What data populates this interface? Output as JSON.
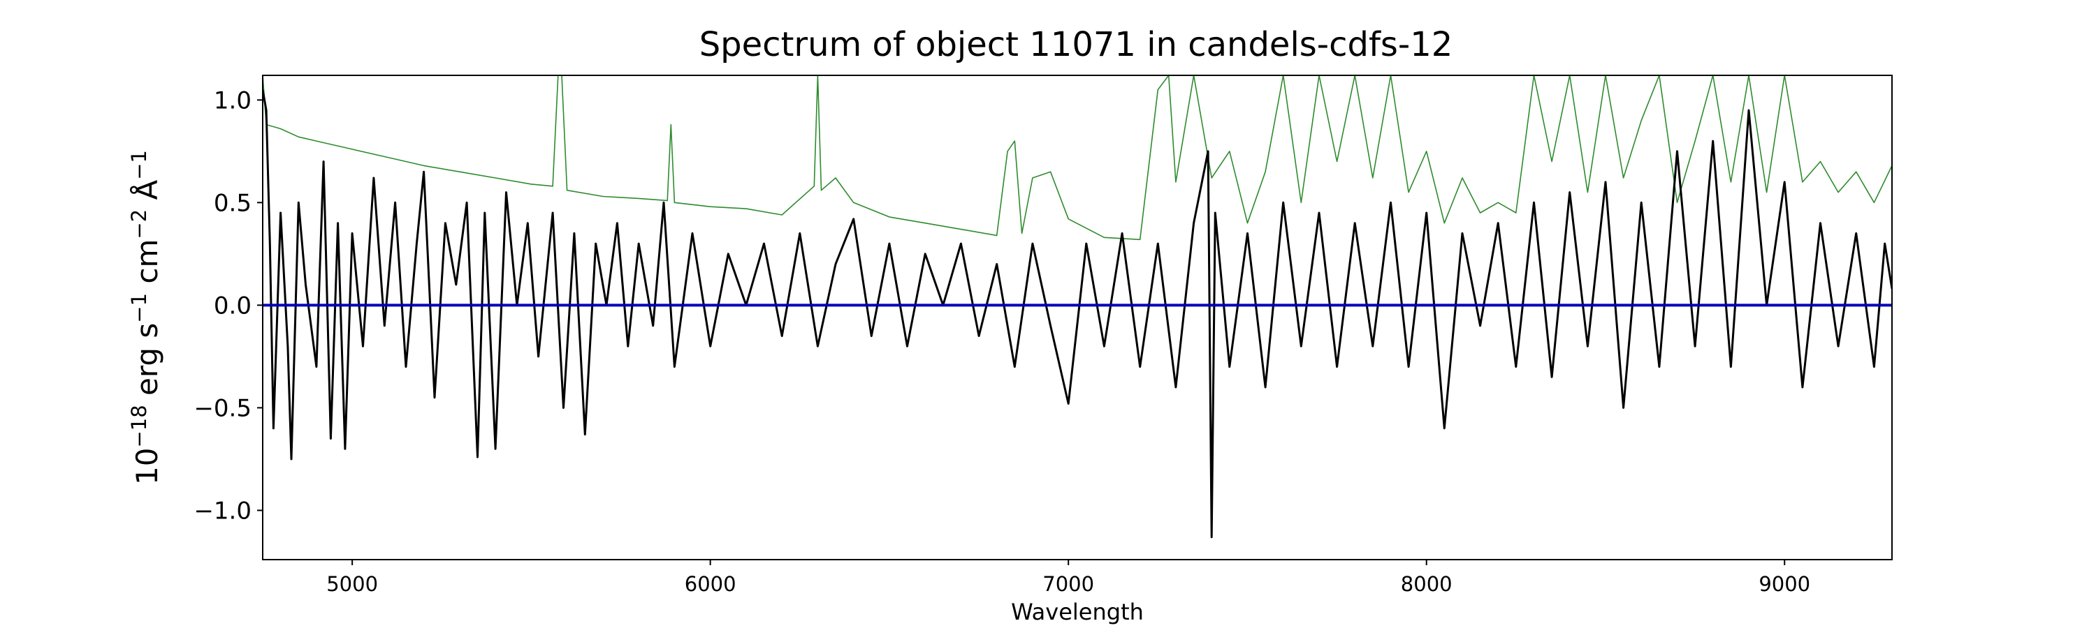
{
  "chart_data": {
    "type": "line",
    "title": "Spectrum of object 11071 in candels-cdfs-12",
    "xlabel": "Wavelength",
    "ylabel_parts": {
      "p1": "10",
      "e1": "−18",
      "p2": " erg s",
      "e2": "−1",
      "p3": " cm",
      "e3": "−2",
      "p4": " Å",
      "e4": "−1"
    },
    "xlim": [
      4750,
      9300
    ],
    "ylim": [
      -1.24,
      1.12
    ],
    "xticks": [
      5000,
      6000,
      7000,
      8000,
      9000
    ],
    "xtick_labels": [
      "5000",
      "6000",
      "7000",
      "8000",
      "9000"
    ],
    "yticks": [
      -1.0,
      -0.5,
      0.0,
      0.5,
      1.0
    ],
    "ytick_labels": [
      "−1.0",
      "−0.5",
      "0.0",
      "0.5",
      "1.0"
    ],
    "grid": false,
    "series": [
      {
        "role": "error",
        "color": "#2e8b2e",
        "points": [
          [
            4750,
            1.12
          ],
          [
            4760,
            0.88
          ],
          [
            4800,
            0.86
          ],
          [
            4850,
            0.82
          ],
          [
            4900,
            0.8
          ],
          [
            5000,
            0.76
          ],
          [
            5100,
            0.72
          ],
          [
            5200,
            0.68
          ],
          [
            5300,
            0.65
          ],
          [
            5400,
            0.62
          ],
          [
            5500,
            0.59
          ],
          [
            5560,
            0.58
          ],
          [
            5575,
            1.12
          ],
          [
            5585,
            1.12
          ],
          [
            5600,
            0.56
          ],
          [
            5700,
            0.53
          ],
          [
            5800,
            0.52
          ],
          [
            5880,
            0.51
          ],
          [
            5890,
            0.88
          ],
          [
            5900,
            0.5
          ],
          [
            6000,
            0.48
          ],
          [
            6100,
            0.47
          ],
          [
            6200,
            0.44
          ],
          [
            6290,
            0.58
          ],
          [
            6300,
            1.12
          ],
          [
            6310,
            0.56
          ],
          [
            6350,
            0.62
          ],
          [
            6400,
            0.5
          ],
          [
            6500,
            0.43
          ],
          [
            6600,
            0.4
          ],
          [
            6700,
            0.37
          ],
          [
            6800,
            0.34
          ],
          [
            6830,
            0.75
          ],
          [
            6850,
            0.8
          ],
          [
            6870,
            0.35
          ],
          [
            6900,
            0.62
          ],
          [
            6950,
            0.65
          ],
          [
            7000,
            0.42
          ],
          [
            7100,
            0.33
          ],
          [
            7200,
            0.32
          ],
          [
            7250,
            1.05
          ],
          [
            7280,
            1.12
          ],
          [
            7300,
            0.6
          ],
          [
            7350,
            1.12
          ],
          [
            7400,
            0.62
          ],
          [
            7450,
            0.75
          ],
          [
            7500,
            0.4
          ],
          [
            7550,
            0.65
          ],
          [
            7600,
            1.12
          ],
          [
            7650,
            0.5
          ],
          [
            7700,
            1.12
          ],
          [
            7750,
            0.7
          ],
          [
            7800,
            1.12
          ],
          [
            7850,
            0.62
          ],
          [
            7900,
            1.12
          ],
          [
            7950,
            0.55
          ],
          [
            8000,
            0.75
          ],
          [
            8050,
            0.4
          ],
          [
            8100,
            0.62
          ],
          [
            8150,
            0.45
          ],
          [
            8200,
            0.5
          ],
          [
            8250,
            0.45
          ],
          [
            8300,
            1.12
          ],
          [
            8350,
            0.7
          ],
          [
            8400,
            1.12
          ],
          [
            8450,
            0.55
          ],
          [
            8500,
            1.12
          ],
          [
            8550,
            0.62
          ],
          [
            8600,
            0.9
          ],
          [
            8650,
            1.12
          ],
          [
            8700,
            0.5
          ],
          [
            8750,
            0.8
          ],
          [
            8800,
            1.12
          ],
          [
            8850,
            0.6
          ],
          [
            8900,
            1.12
          ],
          [
            8950,
            0.55
          ],
          [
            9000,
            1.12
          ],
          [
            9050,
            0.6
          ],
          [
            9100,
            0.7
          ],
          [
            9150,
            0.55
          ],
          [
            9200,
            0.65
          ],
          [
            9250,
            0.5
          ],
          [
            9300,
            0.68
          ]
        ]
      },
      {
        "role": "flux",
        "color": "#000000",
        "points": [
          [
            4750,
            1.05
          ],
          [
            4760,
            0.95
          ],
          [
            4770,
            0.3
          ],
          [
            4780,
            -0.6
          ],
          [
            4800,
            0.45
          ],
          [
            4820,
            -0.2
          ],
          [
            4830,
            -0.75
          ],
          [
            4850,
            0.5
          ],
          [
            4870,
            0.1
          ],
          [
            4900,
            -0.3
          ],
          [
            4920,
            0.7
          ],
          [
            4940,
            -0.65
          ],
          [
            4960,
            0.4
          ],
          [
            4980,
            -0.7
          ],
          [
            5000,
            0.35
          ],
          [
            5030,
            -0.2
          ],
          [
            5060,
            0.62
          ],
          [
            5090,
            -0.1
          ],
          [
            5120,
            0.5
          ],
          [
            5150,
            -0.3
          ],
          [
            5180,
            0.3
          ],
          [
            5200,
            0.65
          ],
          [
            5230,
            -0.45
          ],
          [
            5260,
            0.4
          ],
          [
            5290,
            0.1
          ],
          [
            5320,
            0.5
          ],
          [
            5350,
            -0.74
          ],
          [
            5370,
            0.45
          ],
          [
            5400,
            -0.7
          ],
          [
            5430,
            0.55
          ],
          [
            5460,
            0.0
          ],
          [
            5490,
            0.4
          ],
          [
            5520,
            -0.25
          ],
          [
            5560,
            0.45
          ],
          [
            5590,
            -0.5
          ],
          [
            5620,
            0.35
          ],
          [
            5650,
            -0.63
          ],
          [
            5680,
            0.3
          ],
          [
            5710,
            0.0
          ],
          [
            5740,
            0.4
          ],
          [
            5770,
            -0.2
          ],
          [
            5800,
            0.3
          ],
          [
            5840,
            -0.1
          ],
          [
            5870,
            0.5
          ],
          [
            5900,
            -0.3
          ],
          [
            5950,
            0.35
          ],
          [
            6000,
            -0.2
          ],
          [
            6050,
            0.25
          ],
          [
            6100,
            0.0
          ],
          [
            6150,
            0.3
          ],
          [
            6200,
            -0.15
          ],
          [
            6250,
            0.35
          ],
          [
            6300,
            -0.2
          ],
          [
            6350,
            0.2
          ],
          [
            6400,
            0.42
          ],
          [
            6450,
            -0.15
          ],
          [
            6500,
            0.3
          ],
          [
            6550,
            -0.2
          ],
          [
            6600,
            0.25
          ],
          [
            6650,
            0.0
          ],
          [
            6700,
            0.3
          ],
          [
            6750,
            -0.15
          ],
          [
            6800,
            0.2
          ],
          [
            6850,
            -0.3
          ],
          [
            6900,
            0.3
          ],
          [
            6950,
            -0.1
          ],
          [
            7000,
            -0.48
          ],
          [
            7050,
            0.3
          ],
          [
            7100,
            -0.2
          ],
          [
            7150,
            0.35
          ],
          [
            7200,
            -0.3
          ],
          [
            7250,
            0.3
          ],
          [
            7300,
            -0.4
          ],
          [
            7350,
            0.4
          ],
          [
            7390,
            0.75
          ],
          [
            7400,
            -1.13
          ],
          [
            7410,
            0.45
          ],
          [
            7450,
            -0.3
          ],
          [
            7500,
            0.35
          ],
          [
            7550,
            -0.4
          ],
          [
            7600,
            0.5
          ],
          [
            7650,
            -0.2
          ],
          [
            7700,
            0.45
          ],
          [
            7750,
            -0.3
          ],
          [
            7800,
            0.4
          ],
          [
            7850,
            -0.2
          ],
          [
            7900,
            0.5
          ],
          [
            7950,
            -0.3
          ],
          [
            8000,
            0.45
          ],
          [
            8050,
            -0.6
          ],
          [
            8100,
            0.35
          ],
          [
            8150,
            -0.1
          ],
          [
            8200,
            0.4
          ],
          [
            8250,
            -0.3
          ],
          [
            8300,
            0.5
          ],
          [
            8350,
            -0.35
          ],
          [
            8400,
            0.55
          ],
          [
            8450,
            -0.2
          ],
          [
            8500,
            0.6
          ],
          [
            8550,
            -0.5
          ],
          [
            8600,
            0.5
          ],
          [
            8650,
            -0.3
          ],
          [
            8700,
            0.75
          ],
          [
            8750,
            -0.2
          ],
          [
            8800,
            0.8
          ],
          [
            8850,
            -0.3
          ],
          [
            8900,
            0.95
          ],
          [
            8950,
            0.0
          ],
          [
            9000,
            0.6
          ],
          [
            9050,
            -0.4
          ],
          [
            9100,
            0.4
          ],
          [
            9150,
            -0.2
          ],
          [
            9200,
            0.35
          ],
          [
            9250,
            -0.3
          ],
          [
            9280,
            0.3
          ],
          [
            9300,
            0.08
          ]
        ]
      },
      {
        "role": "model",
        "color": "#0000bb",
        "points": [
          [
            4750,
            0.0
          ],
          [
            9300,
            0.0
          ]
        ]
      }
    ]
  }
}
